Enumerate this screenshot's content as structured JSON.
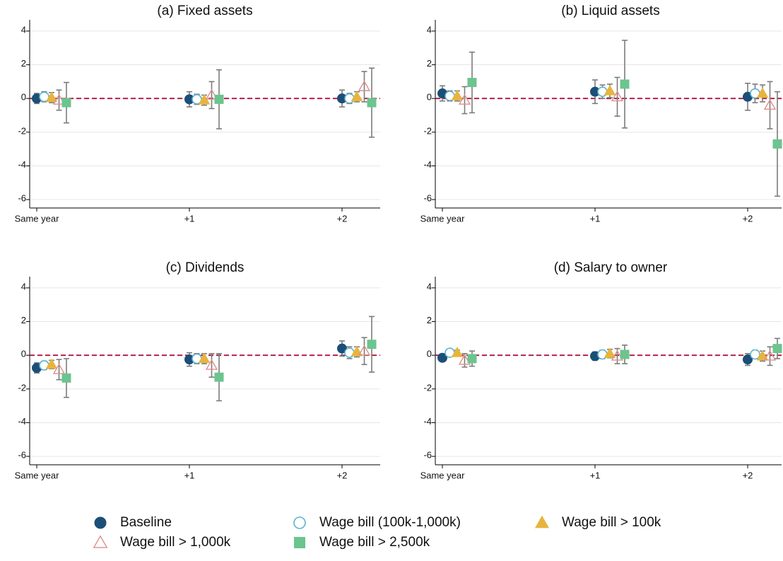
{
  "legend": [
    {
      "name": "Baseline",
      "color": "#1b4f78",
      "marker": "circle"
    },
    {
      "name": "Wage bill (100k-1,000k)",
      "color": "#5ab3cf",
      "marker": "circle-open"
    },
    {
      "name": "Wage bill > 100k",
      "color": "#e7b53d",
      "marker": "triangle"
    },
    {
      "name": "Wage bill > 1,000k",
      "color": "#df8e8c",
      "marker": "triangle-open"
    },
    {
      "name": "Wage bill > 2,500k",
      "color": "#6cc48e",
      "marker": "square"
    }
  ],
  "chart_data": [
    {
      "type": "errorbar",
      "title": "(a) Fixed assets",
      "categories": [
        "Same year",
        "+1",
        "+2"
      ],
      "ylim": [
        -6.5,
        4.5
      ],
      "yticks": [
        4,
        2,
        0,
        -2,
        -4,
        -6
      ],
      "grid": true,
      "hline": 0,
      "series": [
        {
          "values": [
            0,
            -0.05,
            0
          ],
          "errors": [
            0.3,
            0.45,
            0.5
          ]
        },
        {
          "values": [
            0.1,
            -0.05,
            0
          ],
          "errors": [
            0.3,
            0.3,
            0.3
          ]
        },
        {
          "values": [
            0.05,
            -0.1,
            0.1
          ],
          "errors": [
            0.3,
            0.3,
            0.3
          ]
        },
        {
          "values": [
            -0.1,
            0.2,
            0.7
          ],
          "errors": [
            0.6,
            0.8,
            0.9
          ]
        },
        {
          "values": [
            -0.25,
            -0.05,
            -0.25
          ],
          "errors": [
            1.2,
            1.75,
            2.05
          ]
        }
      ]
    },
    {
      "type": "errorbar",
      "title": "(b) Liquid assets",
      "categories": [
        "Same year",
        "+1",
        "+2"
      ],
      "ylim": [
        -6.5,
        4.5
      ],
      "yticks": [
        4,
        2,
        0,
        -2,
        -4,
        -6
      ],
      "grid": true,
      "hline": 0,
      "series": [
        {
          "values": [
            0.3,
            0.4,
            0.1
          ],
          "errors": [
            0.45,
            0.7,
            0.8
          ]
        },
        {
          "values": [
            0.15,
            0.4,
            0.3
          ],
          "errors": [
            0.3,
            0.4,
            0.55
          ]
        },
        {
          "values": [
            0.15,
            0.45,
            0.3
          ],
          "errors": [
            0.3,
            0.4,
            0.5
          ]
        },
        {
          "values": [
            -0.1,
            0.1,
            -0.4
          ],
          "errors": [
            0.8,
            1.15,
            1.4
          ]
        },
        {
          "values": [
            0.95,
            0.85,
            -2.7
          ],
          "errors": [
            1.8,
            2.6,
            3.1
          ]
        }
      ]
    },
    {
      "type": "errorbar",
      "title": "(c) Dividends",
      "categories": [
        "Same year",
        "+1",
        "+2"
      ],
      "ylim": [
        -6.5,
        4.5
      ],
      "yticks": [
        4,
        2,
        0,
        -2,
        -4,
        -6
      ],
      "grid": true,
      "hline": 0,
      "series": [
        {
          "values": [
            -0.75,
            -0.25,
            0.4
          ],
          "errors": [
            0.3,
            0.4,
            0.45
          ]
        },
        {
          "values": [
            -0.6,
            -0.2,
            0.15
          ],
          "errors": [
            0.25,
            0.3,
            0.35
          ]
        },
        {
          "values": [
            -0.55,
            -0.2,
            0.2
          ],
          "errors": [
            0.25,
            0.3,
            0.3
          ]
        },
        {
          "values": [
            -0.85,
            -0.6,
            0.25
          ],
          "errors": [
            0.6,
            0.7,
            0.8
          ]
        },
        {
          "values": [
            -1.35,
            -1.3,
            0.65
          ],
          "errors": [
            1.15,
            1.4,
            1.65
          ]
        }
      ]
    },
    {
      "type": "errorbar",
      "title": "(d) Salary to owner",
      "categories": [
        "Same year",
        "+1",
        "+2"
      ],
      "ylim": [
        -6.5,
        4.5
      ],
      "yticks": [
        4,
        2,
        0,
        -2,
        -4,
        -6
      ],
      "grid": true,
      "hline": 0,
      "series": [
        {
          "values": [
            -0.15,
            -0.05,
            -0.25
          ],
          "errors": [
            0.2,
            0.25,
            0.35
          ]
        },
        {
          "values": [
            0.15,
            0.05,
            0.05
          ],
          "errors": [
            0.15,
            0.25,
            0.25
          ]
        },
        {
          "values": [
            0.15,
            0.1,
            -0.05
          ],
          "errors": [
            0.15,
            0.25,
            0.3
          ]
        },
        {
          "values": [
            -0.3,
            -0.05,
            -0.05
          ],
          "errors": [
            0.4,
            0.45,
            0.55
          ]
        },
        {
          "values": [
            -0.2,
            0.05,
            0.4
          ],
          "errors": [
            0.45,
            0.55,
            0.6
          ]
        }
      ]
    }
  ]
}
